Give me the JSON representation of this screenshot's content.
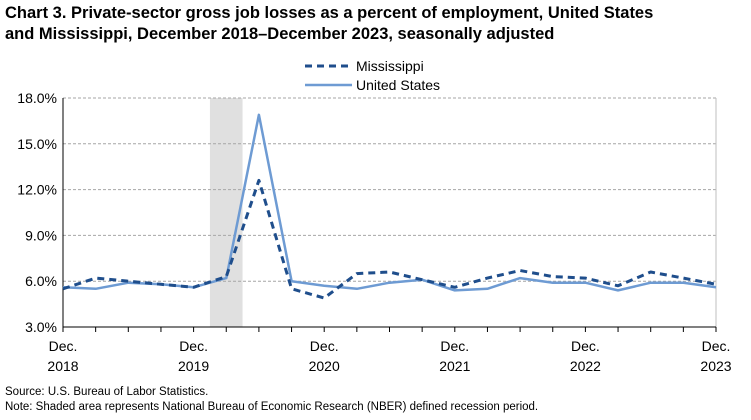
{
  "title": {
    "line1": "Chart 3. Private-sector gross job losses as a percent of employment, United States",
    "line2": "and Mississippi,  December 2018–December 2023, seasonally adjusted"
  },
  "source": "Source: U.S. Bureau of Labor Statistics.",
  "note": "Note: Shaded area represents National Bureau of Economic Research (NBER) defined  recession period.",
  "chart_data": {
    "type": "line",
    "x": [
      "Dec. 2018",
      "Mar. 2019",
      "Jun. 2019",
      "Sep. 2019",
      "Dec. 2019",
      "Mar. 2020",
      "Jun. 2020",
      "Sep. 2020",
      "Dec. 2020",
      "Mar. 2021",
      "Jun. 2021",
      "Sep. 2021",
      "Dec. 2021",
      "Mar. 2022",
      "Jun. 2022",
      "Sep. 2022",
      "Dec. 2022",
      "Mar. 2023",
      "Jun. 2023",
      "Sep. 2023",
      "Dec. 2023"
    ],
    "x_tick_labels": [
      {
        "line1": "Dec.",
        "line2": "2018",
        "index": 0
      },
      {
        "line1": "Dec.",
        "line2": "2019",
        "index": 4
      },
      {
        "line1": "Dec.",
        "line2": "2020",
        "index": 8
      },
      {
        "line1": "Dec.",
        "line2": "2021",
        "index": 12
      },
      {
        "line1": "Dec.",
        "line2": "2022",
        "index": 16
      },
      {
        "line1": "Dec.",
        "line2": "2023",
        "index": 20
      }
    ],
    "series": [
      {
        "name": "Mississippi",
        "style": "dashed",
        "color": "#1f4e8c",
        "values": [
          5.5,
          6.2,
          6.0,
          5.8,
          5.6,
          6.3,
          12.6,
          5.5,
          4.9,
          6.5,
          6.6,
          6.1,
          5.6,
          6.2,
          6.7,
          6.3,
          6.2,
          5.7,
          6.6,
          6.2,
          5.8
        ]
      },
      {
        "name": "United States",
        "style": "solid",
        "color": "#6e9bd3",
        "values": [
          5.6,
          5.5,
          5.9,
          5.8,
          5.6,
          6.2,
          16.9,
          6.0,
          5.7,
          5.5,
          5.9,
          6.1,
          5.4,
          5.5,
          6.2,
          5.9,
          5.9,
          5.4,
          5.9,
          5.9,
          5.6
        ]
      }
    ],
    "y_ticks": [
      "3.0%",
      "6.0%",
      "9.0%",
      "12.0%",
      "15.0%",
      "18.0%"
    ],
    "ylim": [
      3,
      18
    ],
    "recession": {
      "start_index": 4.5,
      "end_index": 5.5,
      "color": "#e0e0e0"
    },
    "grid": true,
    "legend_position": "top-center",
    "xlabel": "",
    "ylabel": ""
  }
}
